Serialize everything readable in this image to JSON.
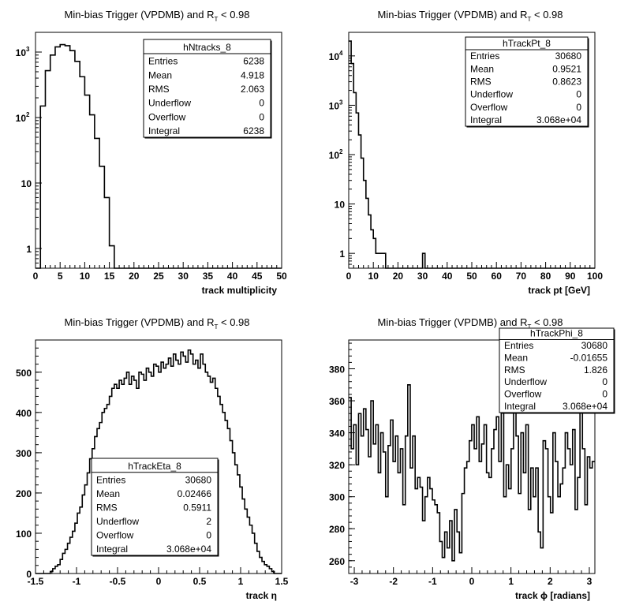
{
  "panels": [
    {
      "id": "ntracks",
      "title": "Min-bias Trigger (VPDMB) and R",
      "title_sub": "T",
      "title_tail": " < 0.98",
      "xlabel": "track multiplicity",
      "stats": {
        "name": "hNtracks_8",
        "rows": [
          [
            "Entries",
            "6238"
          ],
          [
            "Mean",
            "4.918"
          ],
          [
            "RMS",
            "2.063"
          ],
          [
            "Underflow",
            "0"
          ],
          [
            "Overflow",
            "0"
          ],
          [
            "Integral",
            "6238"
          ]
        ]
      }
    },
    {
      "id": "trackpt",
      "title": "Min-bias Trigger (VPDMB) and R",
      "title_sub": "T",
      "title_tail": " < 0.98",
      "xlabel": "track pt [GeV]",
      "stats": {
        "name": "hTrackPt_8",
        "rows": [
          [
            "Entries",
            "30680"
          ],
          [
            "Mean",
            "0.9521"
          ],
          [
            "RMS",
            "0.8623"
          ],
          [
            "Underflow",
            "0"
          ],
          [
            "Overflow",
            "0"
          ],
          [
            "Integral",
            "3.068e+04"
          ]
        ]
      }
    },
    {
      "id": "tracketa",
      "title": "Min-bias Trigger (VPDMB) and R",
      "title_sub": "T",
      "title_tail": " < 0.98",
      "xlabel": "track η",
      "stats": {
        "name": "hTrackEta_8",
        "rows": [
          [
            "Entries",
            "30680"
          ],
          [
            "Mean",
            "0.02466"
          ],
          [
            "RMS",
            "0.5911"
          ],
          [
            "Underflow",
            "2"
          ],
          [
            "Overflow",
            "0"
          ],
          [
            "Integral",
            "3.068e+04"
          ]
        ]
      }
    },
    {
      "id": "trackphi",
      "title": "Min-bias Trigger (VPDMB) and R",
      "title_sub": "T",
      "title_tail": " < 0.98",
      "xlabel": "track ϕ [radians]",
      "stats": {
        "name": "hTrackPhi_8",
        "rows": [
          [
            "Entries",
            "30680"
          ],
          [
            "Mean",
            "-0.01655"
          ],
          [
            "RMS",
            "1.826"
          ],
          [
            "Underflow",
            "0"
          ],
          [
            "Overflow",
            "0"
          ],
          [
            "Integral",
            "3.068e+04"
          ]
        ]
      }
    }
  ],
  "chart_data": [
    {
      "type": "histogram",
      "title": "Min-bias Trigger (VPDMB) and R_T < 0.98",
      "xlabel": "track multiplicity",
      "ylabel": "",
      "xlim": [
        0,
        50
      ],
      "ylog": true,
      "ylim": [
        0.5,
        2000
      ],
      "xticks": [
        0,
        5,
        10,
        15,
        20,
        25,
        30,
        35,
        40,
        45,
        50
      ],
      "yticks": [
        {
          "v": 1,
          "label": "1"
        },
        {
          "v": 10,
          "label": "10"
        },
        {
          "v": 100,
          "label": "10",
          "exp": "2"
        },
        {
          "v": 1000,
          "label": "10",
          "exp": "3"
        }
      ],
      "bin_edges_start": 0,
      "bin_width": 1,
      "values": [
        0,
        150,
        520,
        900,
        1200,
        1300,
        1250,
        1050,
        720,
        420,
        220,
        110,
        48,
        18,
        6,
        1.1,
        0,
        0,
        0,
        0,
        0,
        0,
        0,
        0,
        0,
        0,
        0,
        0,
        0,
        0,
        0,
        0,
        0,
        0,
        0,
        0,
        0,
        0,
        0,
        0,
        0,
        0,
        0,
        0,
        0,
        0,
        0,
        0,
        0,
        0
      ]
    },
    {
      "type": "histogram",
      "title": "Min-bias Trigger (VPDMB) and R_T < 0.98",
      "xlabel": "track pt [GeV]",
      "ylabel": "",
      "xlim": [
        0,
        100
      ],
      "ylog": true,
      "ylim": [
        0.5,
        30000
      ],
      "xticks": [
        0,
        10,
        20,
        30,
        40,
        50,
        60,
        70,
        80,
        90,
        100
      ],
      "yticks": [
        {
          "v": 1,
          "label": "1"
        },
        {
          "v": 10,
          "label": "10"
        },
        {
          "v": 100,
          "label": "10",
          "exp": "2"
        },
        {
          "v": 1000,
          "label": "10",
          "exp": "3"
        },
        {
          "v": 10000,
          "label": "10",
          "exp": "4"
        }
      ],
      "bin_edges_start": 0,
      "bin_width": 1,
      "values": [
        20000,
        7000,
        1800,
        700,
        250,
        85,
        30,
        13,
        6,
        3,
        2,
        1,
        1,
        1,
        1,
        0,
        0,
        0,
        0,
        0,
        0,
        0,
        0,
        0,
        0,
        0,
        0,
        0,
        0,
        0,
        1,
        0,
        0,
        0,
        0,
        0,
        0,
        0,
        0,
        0,
        0,
        0,
        0,
        0,
        0,
        0,
        0,
        0,
        0,
        0,
        0,
        0,
        0,
        0,
        0,
        0,
        0,
        0,
        0,
        0,
        0,
        0,
        0,
        0,
        0,
        0,
        0,
        0,
        0,
        0,
        0,
        0,
        0,
        0,
        0,
        0,
        0,
        0,
        0,
        0,
        0,
        0,
        0,
        0,
        0,
        0,
        0,
        0,
        0,
        0,
        0,
        0,
        0,
        0,
        0,
        0,
        0,
        0,
        0,
        0
      ]
    },
    {
      "type": "histogram",
      "title": "Min-bias Trigger (VPDMB) and R_T < 0.98",
      "xlabel": "track η",
      "ylabel": "",
      "xlim": [
        -1.5,
        1.5
      ],
      "ylog": false,
      "ylim": [
        0,
        580
      ],
      "xticks": [
        {
          "v": -1.5,
          "label": "-1.5"
        },
        {
          "v": -1,
          "label": "-1"
        },
        {
          "v": -0.5,
          "label": "-0.5"
        },
        {
          "v": 0,
          "label": "0"
        },
        {
          "v": 0.5,
          "label": "0.5"
        },
        {
          "v": 1,
          "label": "1"
        },
        {
          "v": 1.5,
          "label": "1.5"
        }
      ],
      "yticks": [
        {
          "v": 0,
          "label": "0"
        },
        {
          "v": 100,
          "label": "100"
        },
        {
          "v": 200,
          "label": "200"
        },
        {
          "v": 300,
          "label": "300"
        },
        {
          "v": 400,
          "label": "400"
        },
        {
          "v": 500,
          "label": "500"
        }
      ],
      "bin_edges_start": -1.5,
      "bin_width": 0.03,
      "values": [
        0,
        0,
        0,
        0,
        0,
        0,
        5,
        12,
        18,
        22,
        35,
        50,
        60,
        75,
        90,
        105,
        125,
        150,
        165,
        195,
        220,
        250,
        285,
        310,
        340,
        360,
        375,
        400,
        410,
        420,
        440,
        460,
        470,
        460,
        480,
        470,
        485,
        500,
        470,
        490,
        480,
        460,
        500,
        495,
        480,
        510,
        500,
        490,
        520,
        515,
        500,
        525,
        510,
        520,
        535,
        515,
        545,
        530,
        520,
        550,
        540,
        525,
        555,
        545,
        520,
        530,
        510,
        545,
        520,
        500,
        490,
        475,
        485,
        460,
        440,
        420,
        400,
        380,
        360,
        330,
        300,
        270,
        245,
        215,
        185,
        160,
        140,
        120,
        100,
        75,
        55,
        40,
        30,
        22,
        18,
        12,
        5,
        0,
        0,
        0
      ]
    },
    {
      "type": "histogram",
      "title": "Min-bias Trigger (VPDMB) and R_T < 0.98",
      "xlabel": "track ϕ [radians]",
      "ylabel": "",
      "xlim": [
        -3.1416,
        3.1416
      ],
      "ylog": false,
      "ylim": [
        252,
        398
      ],
      "xticks": [
        {
          "v": -3,
          "label": "-3"
        },
        {
          "v": -2,
          "label": "-2"
        },
        {
          "v": -1,
          "label": "-1"
        },
        {
          "v": 0,
          "label": "0"
        },
        {
          "v": 1,
          "label": "1"
        },
        {
          "v": 2,
          "label": "2"
        },
        {
          "v": 3,
          "label": "3"
        }
      ],
      "yticks": [
        {
          "v": 260,
          "label": "260"
        },
        {
          "v": 280,
          "label": "280"
        },
        {
          "v": 300,
          "label": "300"
        },
        {
          "v": 320,
          "label": "320"
        },
        {
          "v": 340,
          "label": "340"
        },
        {
          "v": 360,
          "label": "360"
        },
        {
          "v": 380,
          "label": "380"
        }
      ],
      "bin_edges_start": -3.1416,
      "bin_width": 0.0628,
      "values": [
        362,
        330,
        345,
        320,
        352,
        338,
        355,
        342,
        325,
        360,
        333,
        345,
        315,
        340,
        328,
        300,
        332,
        348,
        322,
        338,
        315,
        330,
        295,
        338,
        370,
        318,
        338,
        305,
        312,
        306,
        285,
        300,
        312,
        305,
        298,
        295,
        290,
        272,
        262,
        278,
        268,
        285,
        260,
        292,
        278,
        265,
        302,
        318,
        322,
        335,
        345,
        330,
        350,
        322,
        333,
        345,
        315,
        312,
        330,
        342,
        350,
        322,
        365,
        300,
        320,
        305,
        330,
        388,
        338,
        302,
        340,
        315,
        345,
        292,
        318,
        300,
        318,
        278,
        268,
        335,
        330,
        300,
        290,
        340,
        322,
        300,
        308,
        318,
        340,
        330,
        320,
        342,
        292,
        312,
        360,
        330,
        295,
        325,
        318,
        322
      ]
    }
  ]
}
